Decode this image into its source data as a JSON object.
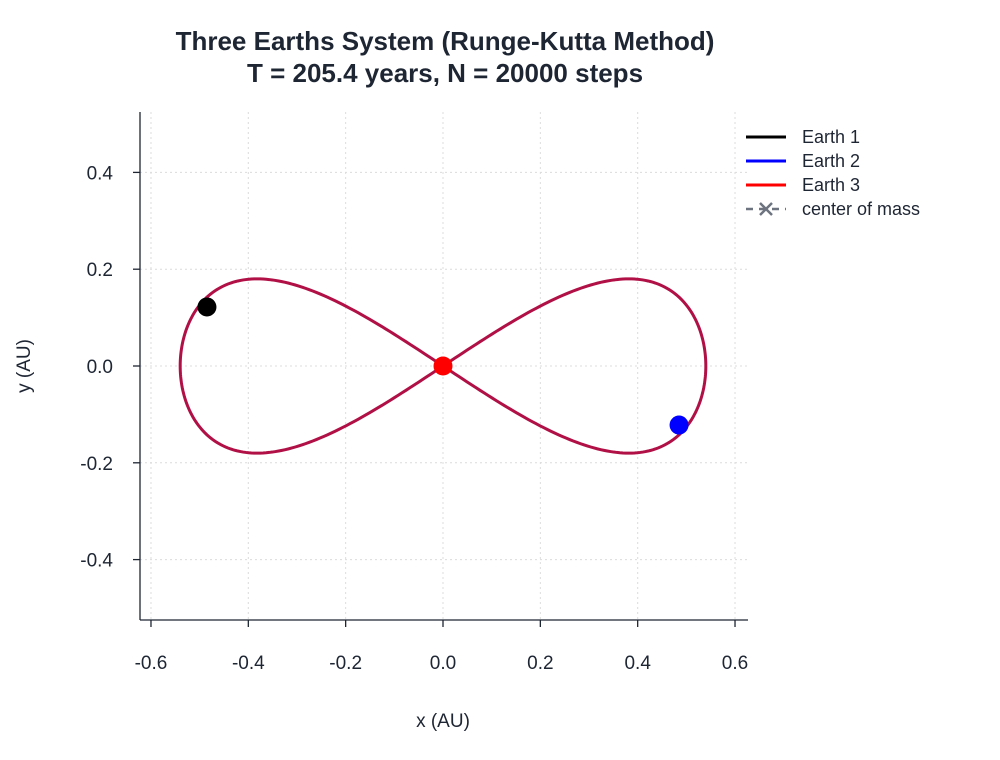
{
  "chart_data": {
    "type": "line",
    "title": "Three Earths System (Runge-Kutta Method)",
    "subtitle": "T = 205.4 years, N = 20000 steps",
    "xlabel": "x (AU)",
    "ylabel": "y (AU)",
    "xlim": [
      -0.625,
      0.625
    ],
    "ylim": [
      -0.52,
      0.52
    ],
    "x_ticks": [
      -0.6,
      -0.4,
      -0.2,
      0.0,
      0.2,
      0.4,
      0.6
    ],
    "x_tick_labels": [
      "-0.6",
      "-0.4",
      "-0.2",
      "0.0",
      "0.2",
      "0.4",
      "0.6"
    ],
    "y_ticks": [
      -0.4,
      -0.2,
      0.0,
      0.2,
      0.4
    ],
    "y_tick_labels": [
      "-0.4",
      "-0.2",
      "0.0",
      "0.2",
      "0.4"
    ],
    "grid": true,
    "legend_position": "top-right",
    "orbit": {
      "shape": "figure-eight",
      "x_extent": [
        -0.54,
        0.54
      ],
      "y_extent": [
        -0.18,
        0.18
      ],
      "color": "#b01045"
    },
    "series": [
      {
        "name": "Earth 1",
        "color": "#000000",
        "style": "solid",
        "position": {
          "x": -0.485,
          "y": 0.122
        }
      },
      {
        "name": "Earth 2",
        "color": "#0000ff",
        "style": "solid",
        "position": {
          "x": 0.485,
          "y": -0.122
        }
      },
      {
        "name": "Earth 3",
        "color": "#ff0000",
        "style": "solid",
        "position": {
          "x": 0.0,
          "y": 0.0
        }
      },
      {
        "name": "center of mass",
        "color": "#6e7380",
        "style": "dashed-x",
        "position": {
          "x": 0.0,
          "y": 0.0
        }
      }
    ],
    "colors": {
      "grid": "#dcdcdc",
      "axis": "#1e2533",
      "text": "#1e2533"
    }
  }
}
